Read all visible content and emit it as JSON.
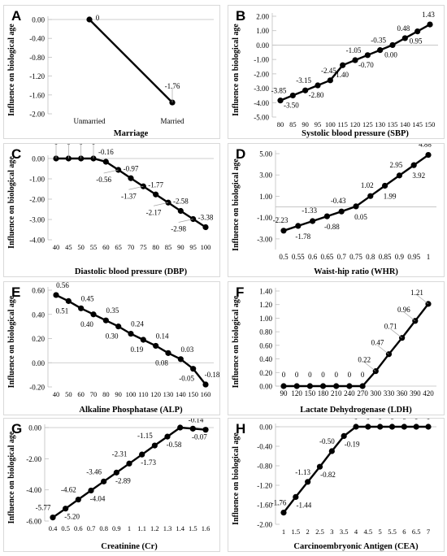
{
  "figure": {
    "ylabel": "Influence on biological age",
    "line_color": "#000000",
    "point_color": "#000000",
    "leader_color": "#a6a6a6"
  },
  "panels": [
    {
      "letter": "A",
      "xlabel": "Marriage"
    },
    {
      "letter": "B",
      "xlabel": "Systolic blood pressure (SBP)"
    },
    {
      "letter": "C",
      "xlabel": "Diastolic blood pressure (DBP)"
    },
    {
      "letter": "D",
      "xlabel": "Waist-hip ratio (WHR)"
    },
    {
      "letter": "E",
      "xlabel": "Alkaline Phosphatase (ALP)"
    },
    {
      "letter": "F",
      "xlabel": "Lactate Dehydrogenase (LDH)"
    },
    {
      "letter": "G",
      "xlabel": "Creatinine (Cr)"
    },
    {
      "letter": "H",
      "xlabel": "Carcinoembryonic Antigen (CEA)"
    }
  ],
  "chart_data": [
    {
      "type": "line",
      "xlabel": "Marriage",
      "ylabel": "Influence on biological age",
      "categories": [
        "Unmarried",
        "Married"
      ],
      "values": [
        0,
        -1.76
      ],
      "point_labels": [
        "0",
        "-1.76"
      ],
      "ylim": [
        -2.0,
        0.0
      ],
      "yticks": [
        "0.00",
        "-0.40",
        "-0.80",
        "-1.20",
        "-1.60",
        "-2.00"
      ]
    },
    {
      "type": "line",
      "xlabel": "Systolic blood pressure (SBP)",
      "ylabel": "Influence on biological age",
      "categories": [
        "80",
        "85",
        "90",
        "95",
        "100",
        "115",
        "120",
        "125",
        "130",
        "135",
        "140",
        "145",
        "150"
      ],
      "values": [
        -3.85,
        -3.5,
        -3.15,
        -2.8,
        -2.45,
        -1.4,
        -1.05,
        -0.7,
        -0.35,
        0.0,
        0.48,
        0.95,
        1.43
      ],
      "point_labels": [
        "-3.85",
        "-3.50",
        "-3.15",
        "-2.80",
        "-2.45",
        "-1.40",
        "-1.05",
        "-0.70",
        "-0.35",
        "0.00",
        "0.48",
        "0.95",
        "1.43"
      ],
      "ylim": [
        -5.0,
        2.0
      ],
      "yticks": [
        "2.00",
        "1.00",
        "0.00",
        "-1.00",
        "-2.00",
        "-3.00",
        "-4.00",
        "-5.00"
      ]
    },
    {
      "type": "line",
      "xlabel": "Diastolic blood pressure (DBP)",
      "ylabel": "Influence on biological age",
      "categories": [
        "40",
        "45",
        "50",
        "55",
        "60",
        "65",
        "70",
        "75",
        "80",
        "85",
        "90",
        "95",
        "100"
      ],
      "values": [
        0,
        0,
        0,
        0,
        -0.16,
        -0.56,
        -0.97,
        -1.37,
        -1.77,
        -2.17,
        -2.58,
        -2.98,
        -3.38
      ],
      "point_labels": [
        "0",
        "0",
        "0",
        "0",
        "-0.16",
        "-0.56",
        "-0.97",
        "-1.37",
        "-1.77",
        "-2.17",
        "-2.58",
        "-2.98",
        "-3.38"
      ],
      "ylim": [
        -4.0,
        0.0
      ],
      "yticks": [
        "0.00",
        "-1.00",
        "-2.00",
        "-3.00",
        "-4.00"
      ]
    },
    {
      "type": "line",
      "xlabel": "Waist-hip ratio (WHR)",
      "ylabel": "Influence on biological age",
      "categories": [
        "0.5",
        "0.55",
        "0.6",
        "0.65",
        "0.7",
        "0.75",
        "0.8",
        "0.85",
        "0.9",
        "0.95",
        "1"
      ],
      "values": [
        -2.23,
        -1.78,
        -1.33,
        -0.88,
        -0.43,
        0.05,
        1.02,
        1.99,
        2.95,
        3.92,
        4.88
      ],
      "point_labels": [
        "-2.23",
        "-1.78",
        "-1.33",
        "-0.88",
        "-0.43",
        "0.05",
        "1.02",
        "1.99",
        "2.95",
        "3.92",
        "4.88"
      ],
      "ylim": [
        -4.0,
        5.0
      ],
      "yticks": [
        "5.00",
        "3.00",
        "1.00",
        "-1.00",
        "-3.00"
      ]
    },
    {
      "type": "line",
      "xlabel": "Alkaline Phosphatase (ALP)",
      "ylabel": "Influence on biological age",
      "categories": [
        "40",
        "50",
        "60",
        "70",
        "80",
        "90",
        "100",
        "110",
        "120",
        "130",
        "140",
        "150",
        "160"
      ],
      "values": [
        0.56,
        0.51,
        0.45,
        0.4,
        0.35,
        0.3,
        0.24,
        0.19,
        0.14,
        0.08,
        0.03,
        -0.05,
        -0.18
      ],
      "point_labels": [
        "0.56",
        "0.51",
        "0.45",
        "0.40",
        "0.35",
        "0.30",
        "0.24",
        "0.19",
        "0.14",
        "0.08",
        "0.03",
        "-0.05",
        "-0.18"
      ],
      "ylim": [
        -0.2,
        0.6
      ],
      "yticks": [
        "0.60",
        "0.40",
        "0.20",
        "0.00",
        "-0.20"
      ]
    },
    {
      "type": "line",
      "xlabel": "Lactate Dehydrogenase (LDH)",
      "ylabel": "Influence on biological age",
      "categories": [
        "90",
        "120",
        "150",
        "180",
        "210",
        "240",
        "270",
        "300",
        "330",
        "360",
        "390",
        "420"
      ],
      "values": [
        0,
        0,
        0,
        0,
        0,
        0,
        0,
        0.22,
        0.47,
        0.71,
        0.96,
        1.21
      ],
      "point_labels": [
        "0",
        "0",
        "0",
        "0",
        "0",
        "0",
        "0",
        "0.22",
        "0.47",
        "0.71",
        "0.96",
        "1.21"
      ],
      "ylim": [
        0.0,
        1.4
      ],
      "yticks": [
        "1.40",
        "1.20",
        "1.00",
        "0.80",
        "0.60",
        "0.40",
        "0.20",
        "0.00"
      ]
    },
    {
      "type": "line",
      "xlabel": "Creatinine (Cr)",
      "ylabel": "Influence on biological age",
      "categories": [
        "0.4",
        "0.5",
        "0.6",
        "0.7",
        "0.8",
        "0.9",
        "1",
        "1.1",
        "1.2",
        "1.3",
        "1.4",
        "1.5",
        "1.6"
      ],
      "values": [
        -5.77,
        -5.2,
        -4.62,
        -4.04,
        -3.46,
        -2.89,
        -2.31,
        -1.73,
        -1.15,
        -0.58,
        0,
        -0.07,
        -0.14
      ],
      "point_labels": [
        "-5.77",
        "-5.20",
        "-4.62",
        "-4.04",
        "-3.46",
        "-2.89",
        "-2.31",
        "-1.73",
        "-1.15",
        "-0.58",
        "",
        "-0.07",
        "-0.14"
      ],
      "ylim": [
        -6.0,
        0.0
      ],
      "yticks": [
        "0.00",
        "-2.00",
        "-4.00",
        "-6.00"
      ]
    },
    {
      "type": "line",
      "xlabel": "Carcinoembryonic Antigen (CEA)",
      "ylabel": "Influence on biological age",
      "categories": [
        "1",
        "1.5",
        "2",
        "2.5",
        "3",
        "3.5",
        "4",
        "4.5",
        "5",
        "5.5",
        "6",
        "6.5",
        "7"
      ],
      "values": [
        -1.76,
        -1.44,
        -1.13,
        -0.82,
        -0.5,
        -0.19,
        0,
        0,
        0,
        0,
        0,
        0,
        0
      ],
      "point_labels": [
        "-1.76",
        "-1.44",
        "-1.13",
        "-0.82",
        "-0.50",
        "-0.19",
        "0",
        "0",
        "0",
        "0",
        "0",
        "0",
        "0"
      ],
      "ylim": [
        -2.0,
        0.0
      ],
      "yticks": [
        "0.00",
        "-0.40",
        "-0.80",
        "-1.20",
        "-1.60",
        "-2.00"
      ]
    }
  ]
}
